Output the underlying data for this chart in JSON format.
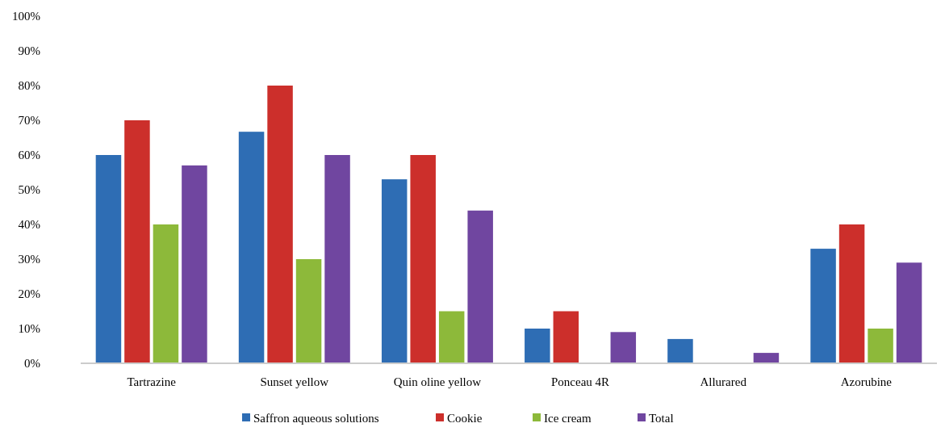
{
  "chart_data": {
    "type": "bar",
    "categories": [
      "Tartrazine",
      "Sunset yellow",
      "Quin oline yellow",
      "Ponceau 4R",
      "Allurared",
      "Azorubine"
    ],
    "series": [
      {
        "name": "Saffron aqueous solutions",
        "color": "#2e6db4",
        "values": [
          60,
          66.7,
          53,
          10,
          7,
          33
        ]
      },
      {
        "name": "Cookie",
        "color": "#cc2f2b",
        "values": [
          70,
          80,
          60,
          15,
          0,
          40
        ]
      },
      {
        "name": "Ice cream",
        "color": "#8db93a",
        "values": [
          40,
          30,
          15,
          0,
          0,
          10
        ]
      },
      {
        "name": "Total",
        "color": "#7046a0",
        "values": [
          57,
          60,
          44,
          9,
          3,
          29
        ]
      }
    ],
    "ylim": [
      0,
      100
    ],
    "yticks": [
      {
        "value": 0,
        "label": "0%"
      },
      {
        "value": 10,
        "label": "10%"
      },
      {
        "value": 20,
        "label": "20%"
      },
      {
        "value": 30,
        "label": "30%"
      },
      {
        "value": 40,
        "label": "40%"
      },
      {
        "value": 50,
        "label": "50%"
      },
      {
        "value": 60,
        "label": "60%"
      },
      {
        "value": 70,
        "label": "70%"
      },
      {
        "value": 80,
        "label": "80%"
      },
      {
        "value": 90,
        "label": "90%"
      },
      {
        "value": 100,
        "label": "100%"
      }
    ],
    "grid": false,
    "legend": "bottom"
  }
}
